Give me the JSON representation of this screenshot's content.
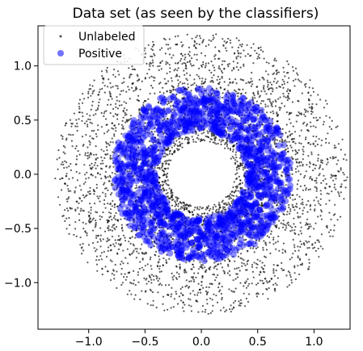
{
  "chart_data": {
    "type": "scatter",
    "title": "Data set (as seen by the classifiers)",
    "xlabel": "",
    "ylabel": "",
    "xlim": [
      -1.45,
      1.32
    ],
    "ylim": [
      -1.43,
      1.37
    ],
    "xticks": [
      -1.0,
      -0.5,
      0.0,
      0.5,
      1.0
    ],
    "xtick_labels": [
      "−1.0",
      "−0.5",
      "0.0",
      "0.5",
      "1.0"
    ],
    "yticks": [
      -1.0,
      -0.5,
      0.0,
      0.5,
      1.0
    ],
    "ytick_labels": [
      "−1.0",
      "−0.5",
      "0.0",
      "0.5",
      "1.0"
    ],
    "grid": false,
    "legend_position": "upper-left",
    "series": [
      {
        "name": "Unlabeled",
        "color": "#000000",
        "marker": "small-dot",
        "shape": "ring",
        "radius_range": [
          0.3,
          1.3
        ],
        "approx_count": 4000
      },
      {
        "name": "Positive",
        "color": "#0000ff",
        "marker": "circle",
        "shape": "ring",
        "radius_range": [
          0.4,
          0.8
        ],
        "approx_count": 1500
      }
    ]
  }
}
